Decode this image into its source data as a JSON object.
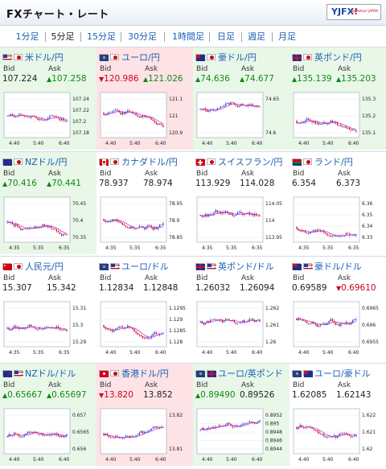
{
  "header": {
    "title": "FXチャート・レート",
    "logo_text": "YJFX",
    "logo_bang": "!",
    "logo_sub": "by Yahoo! JAPAN"
  },
  "tabs": [
    {
      "label": "1分足",
      "active": false
    },
    {
      "label": "5分足",
      "active": true
    },
    {
      "label": "15分足",
      "active": false
    },
    {
      "label": "30分足",
      "active": false
    },
    {
      "label": "1時間足",
      "active": false
    },
    {
      "label": "日足",
      "active": false
    },
    {
      "label": "週足",
      "active": false
    },
    {
      "label": "月足",
      "active": false
    }
  ],
  "labels": {
    "bid": "Bid",
    "ask": "Ask"
  },
  "pairs": [
    {
      "name": "米ドル/円",
      "bg": "green",
      "bid": "107.224",
      "ask": "107.258",
      "bid_dir": "flat",
      "ask_dir": "up",
      "flags": [
        "us",
        "jp"
      ],
      "y_ticks": [
        "107.24",
        "107.22",
        "107.2",
        "107.18"
      ],
      "x_ticks": [
        "4:40",
        "5:40",
        "6:40"
      ]
    },
    {
      "name": "ユーロ/円",
      "bg": "pink",
      "bid": "120.986",
      "ask": "121.026",
      "bid_dir": "down",
      "ask_dir": "up",
      "flags": [
        "eu",
        "jp"
      ],
      "y_ticks": [
        "121.1",
        "121",
        "120.9"
      ],
      "x_ticks": [
        "4:40",
        "5:40",
        "6:40"
      ]
    },
    {
      "name": "豪ドル/円",
      "bg": "green",
      "bid": "74.636",
      "ask": "74.677",
      "bid_dir": "up",
      "ask_dir": "up",
      "flags": [
        "au",
        "jp"
      ],
      "y_ticks": [
        "74.65",
        "74.6"
      ],
      "x_ticks": [
        "4:40",
        "5:40",
        "6:40"
      ]
    },
    {
      "name": "英ポンド/円",
      "bg": "green",
      "bid": "135.139",
      "ask": "135.203",
      "bid_dir": "up",
      "ask_dir": "up",
      "flags": [
        "uk",
        "jp"
      ],
      "y_ticks": [
        "135.3",
        "135.2",
        "135.1"
      ],
      "x_ticks": [
        "4:40",
        "5:40",
        "6:40"
      ]
    },
    {
      "name": "NZドル/円",
      "bg": "green",
      "bid": "70.416",
      "ask": "70.441",
      "bid_dir": "up",
      "ask_dir": "up",
      "flags": [
        "nz",
        "jp"
      ],
      "y_ticks": [
        "70.45",
        "70.4",
        "70.35"
      ],
      "x_ticks": [
        "4:35",
        "5:35",
        "6:35"
      ]
    },
    {
      "name": "カナダドル/円",
      "bg": "white",
      "bid": "78.937",
      "ask": "78.974",
      "bid_dir": "flat",
      "ask_dir": "flat",
      "flags": [
        "ca",
        "jp"
      ],
      "y_ticks": [
        "78.95",
        "78.9",
        "78.85"
      ],
      "x_ticks": [
        "4:35",
        "5:35",
        "6:35"
      ]
    },
    {
      "name": "スイスフラン/円",
      "bg": "white",
      "bid": "113.929",
      "ask": "114.028",
      "bid_dir": "flat",
      "ask_dir": "flat",
      "flags": [
        "ch",
        "jp"
      ],
      "y_ticks": [
        "114.05",
        "114",
        "113.95"
      ],
      "x_ticks": [
        "4:35",
        "5:35",
        "6:35"
      ]
    },
    {
      "name": "ランド/円",
      "bg": "white",
      "bid": "6.354",
      "ask": "6.373",
      "bid_dir": "flat",
      "ask_dir": "flat",
      "flags": [
        "za",
        "jp"
      ],
      "y_ticks": [
        "6.36",
        "6.35",
        "6.34",
        "6.33"
      ],
      "x_ticks": [
        "4:35",
        "5:35",
        "6:35"
      ]
    },
    {
      "name": "人民元/円",
      "bg": "white",
      "bid": "15.307",
      "ask": "15.342",
      "bid_dir": "flat",
      "ask_dir": "flat",
      "flags": [
        "cn",
        "jp"
      ],
      "y_ticks": [
        "15.31",
        "15.3",
        "15.29"
      ],
      "x_ticks": [
        "4:35",
        "5:35",
        "6:35"
      ]
    },
    {
      "name": "ユーロ/ドル",
      "bg": "white",
      "bid": "1.12834",
      "ask": "1.12848",
      "bid_dir": "flat",
      "ask_dir": "flat",
      "flags": [
        "eu",
        "us"
      ],
      "y_ticks": [
        "1.1295",
        "1.129",
        "1.1285",
        "1.128"
      ],
      "x_ticks": [
        "4:40",
        "5:40",
        "6:40"
      ]
    },
    {
      "name": "英ポンド/ドル",
      "bg": "white",
      "bid": "1.26032",
      "ask": "1.26094",
      "bid_dir": "flat",
      "ask_dir": "flat",
      "flags": [
        "uk",
        "us"
      ],
      "y_ticks": [
        "1.262",
        "1.261",
        "1.26"
      ],
      "x_ticks": [
        "4:40",
        "5:40",
        "6:40"
      ]
    },
    {
      "name": "豪ドル/ドル",
      "bg": "white",
      "bid": "0.69589",
      "ask": "0.69610",
      "bid_dir": "flat",
      "ask_dir": "down",
      "flags": [
        "au",
        "us"
      ],
      "y_ticks": [
        "0.6965",
        "0.696",
        "0.6955"
      ],
      "x_ticks": [
        "4:40",
        "5:40",
        "6:40"
      ]
    },
    {
      "name": "NZドル/ドル",
      "bg": "green",
      "bid": "0.65667",
      "ask": "0.65697",
      "bid_dir": "up",
      "ask_dir": "up",
      "flags": [
        "nz",
        "us"
      ],
      "y_ticks": [
        "0.657",
        "0.6565",
        "0.656"
      ],
      "x_ticks": [
        "4:40",
        "5:40",
        "6:40"
      ]
    },
    {
      "name": "香港ドル/円",
      "bg": "pink",
      "bid": "13.820",
      "ask": "13.852",
      "bid_dir": "down",
      "ask_dir": "flat",
      "flags": [
        "hk",
        "jp"
      ],
      "y_ticks": [
        "13.82",
        "13.81"
      ],
      "x_ticks": [
        "4:40",
        "5:40",
        "6:40"
      ]
    },
    {
      "name": "ユーロ/英ポンド",
      "bg": "green",
      "bid": "0.89490",
      "ask": "0.89526",
      "bid_dir": "up",
      "ask_dir": "flat",
      "flags": [
        "eu",
        "uk"
      ],
      "y_ticks": [
        "0.8952",
        "0.895",
        "0.8948",
        "0.8946",
        "0.8944"
      ],
      "x_ticks": [
        "4:40",
        "5:40",
        "6:40"
      ]
    },
    {
      "name": "ユーロ/豪ドル",
      "bg": "white",
      "bid": "1.62085",
      "ask": "1.62143",
      "bid_dir": "flat",
      "ask_dir": "flat",
      "flags": [
        "eu",
        "au"
      ],
      "y_ticks": [
        "1.622",
        "1.621",
        "1.62"
      ],
      "x_ticks": [
        "4:40",
        "5:40",
        "6:40"
      ]
    }
  ],
  "colors": {
    "up_candle": "#1a3fd0",
    "down_candle": "#d0021b",
    "ma_line": "#c026d3",
    "spike_line": "#1aa3e8"
  }
}
